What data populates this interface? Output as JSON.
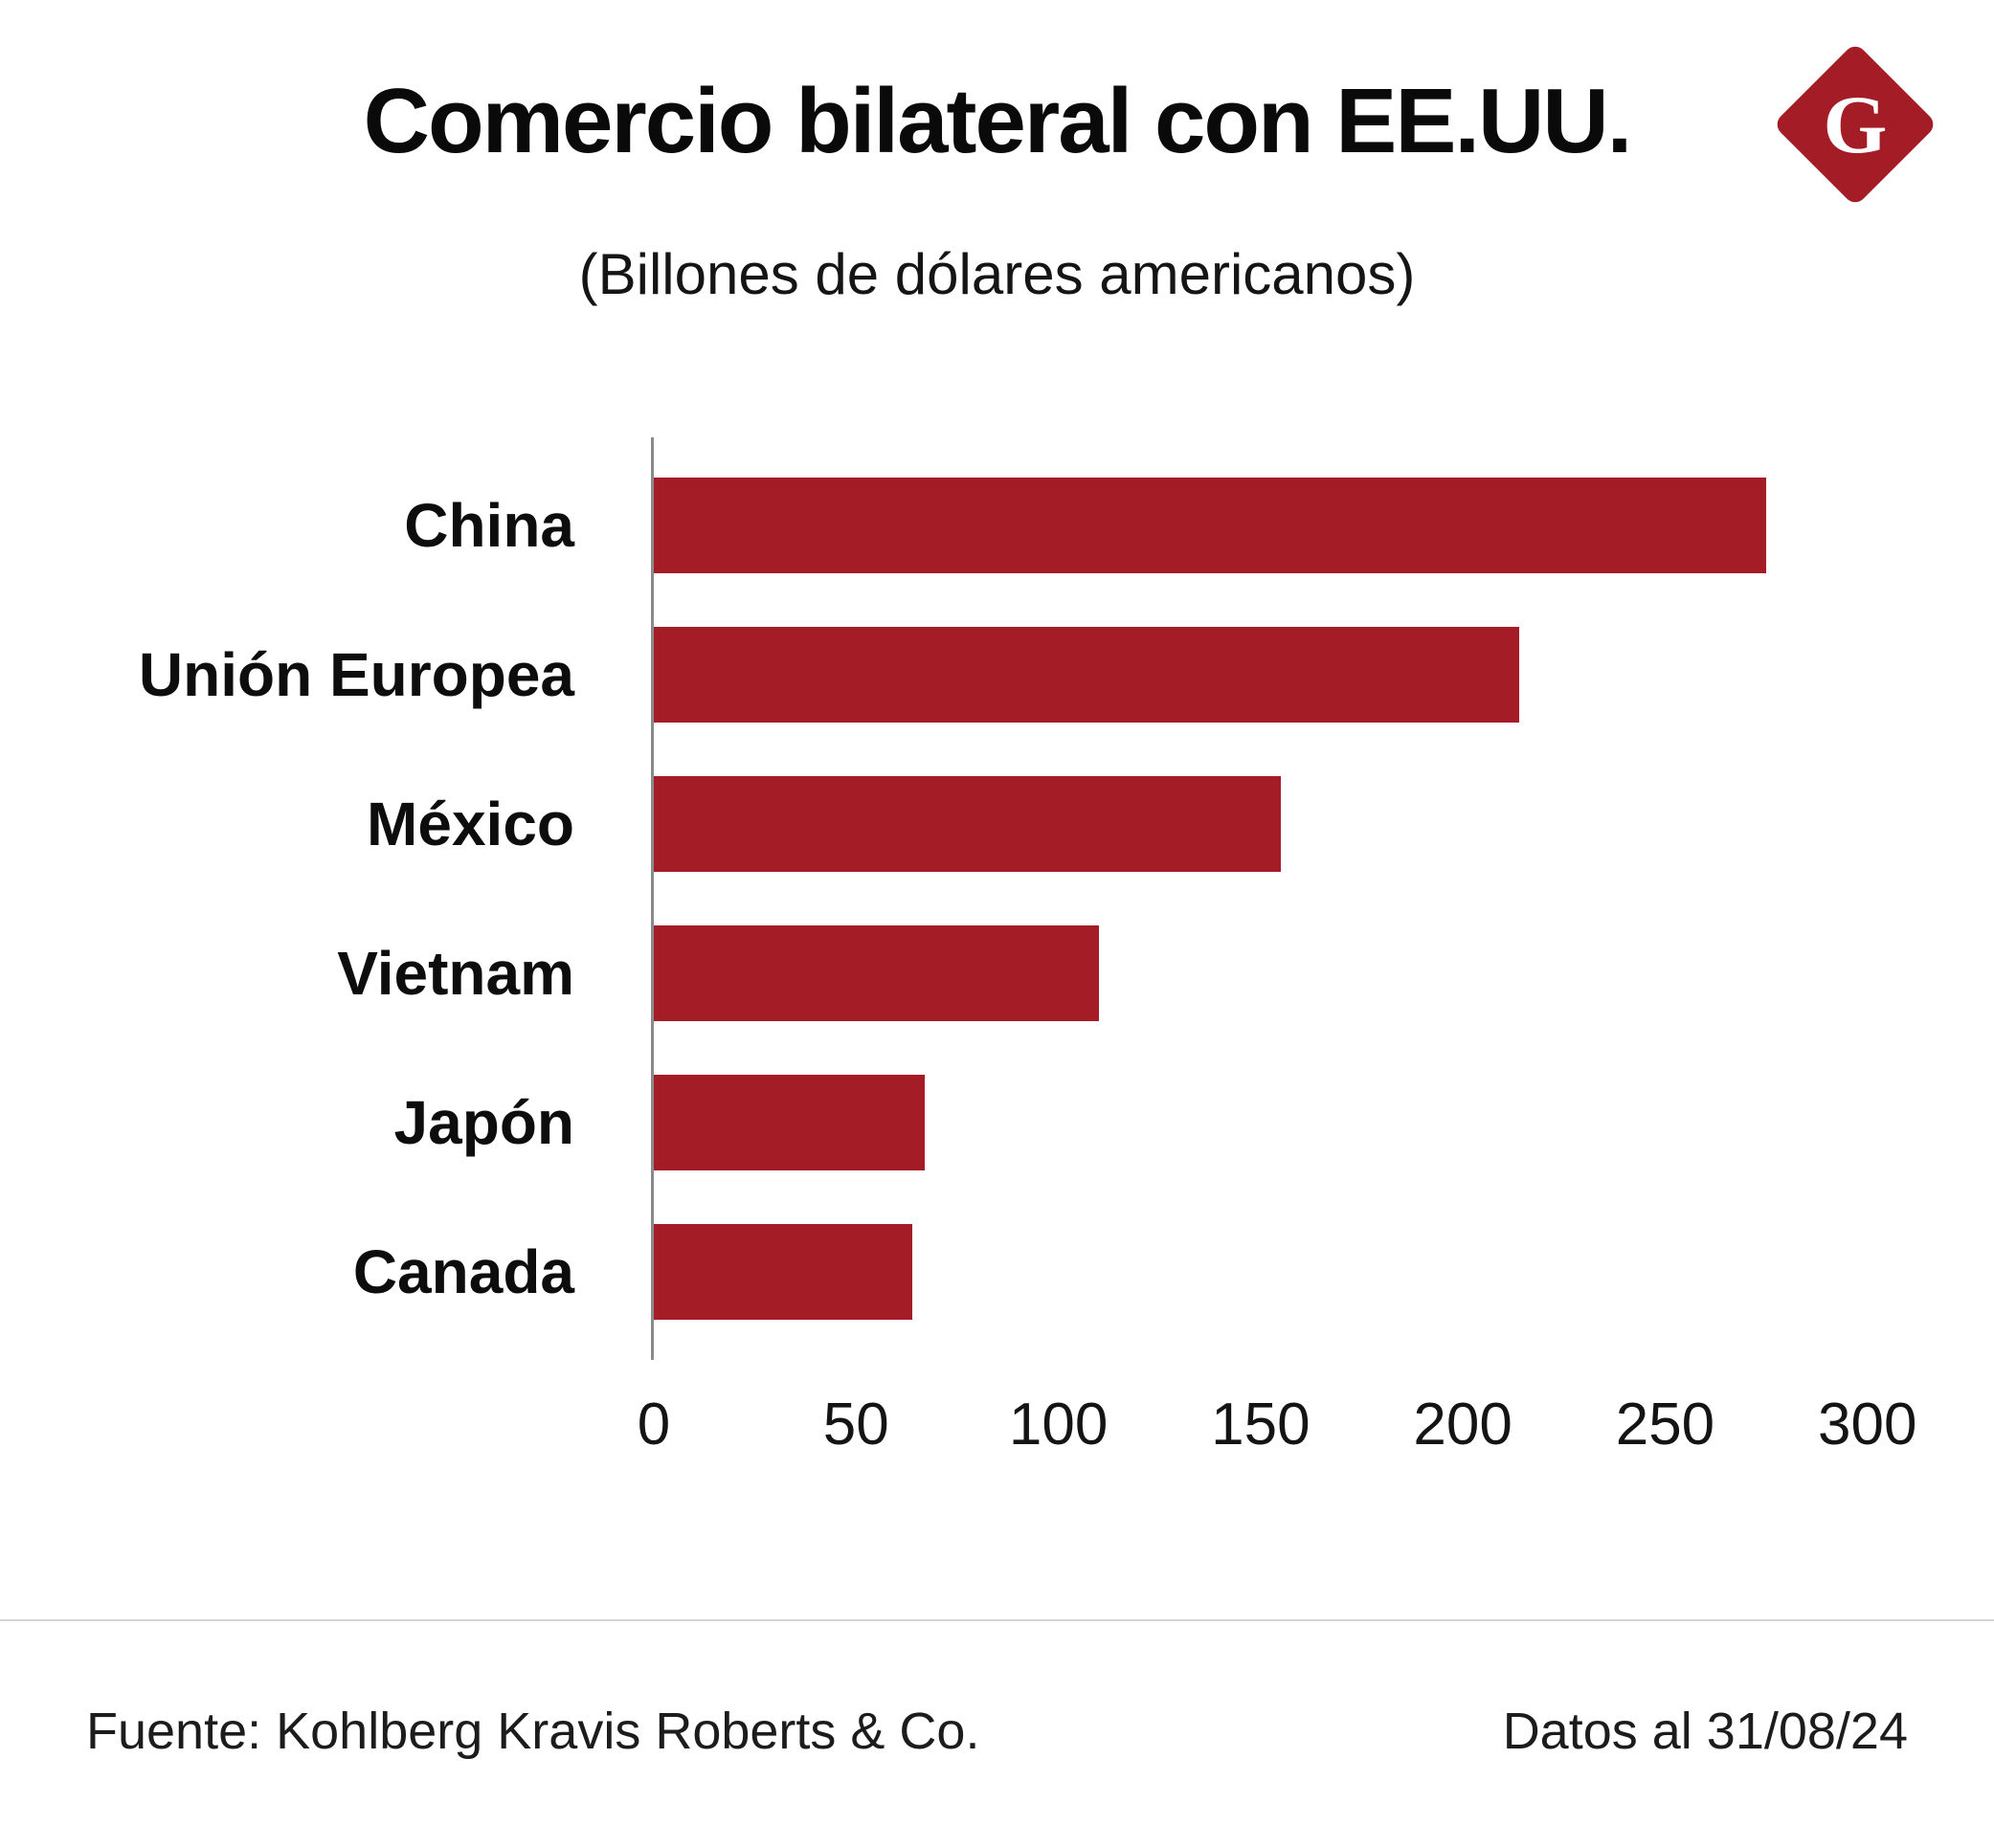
{
  "header": {
    "title": "Comercio bilateral con EE.UU.",
    "logo_letter": "G"
  },
  "subtitle": "(Billones de dólares americanos)",
  "chart_data": {
    "type": "bar",
    "orientation": "horizontal",
    "title": "Comercio bilateral con EE.UU.",
    "subtitle": "(Billones de dólares americanos)",
    "categories": [
      "China",
      "Unión Europea",
      "México",
      "Vietnam",
      "Japón",
      "Canada"
    ],
    "values": [
      275,
      214,
      155,
      110,
      67,
      64
    ],
    "xlabel": "",
    "ylabel": "",
    "xlim": [
      0,
      300
    ],
    "xticks": [
      0,
      50,
      100,
      150,
      200,
      250,
      300
    ],
    "axis_scale_max": 310,
    "bar_color": "#A31C26",
    "grid": false,
    "legend": false
  },
  "footer": {
    "source": "Fuente: Kohlberg Kravis Roberts & Co.",
    "date": "Datos al 31/08/24"
  },
  "colors": {
    "accent": "#A31C26",
    "text": "#111111",
    "divider": "#d4d4d4"
  }
}
